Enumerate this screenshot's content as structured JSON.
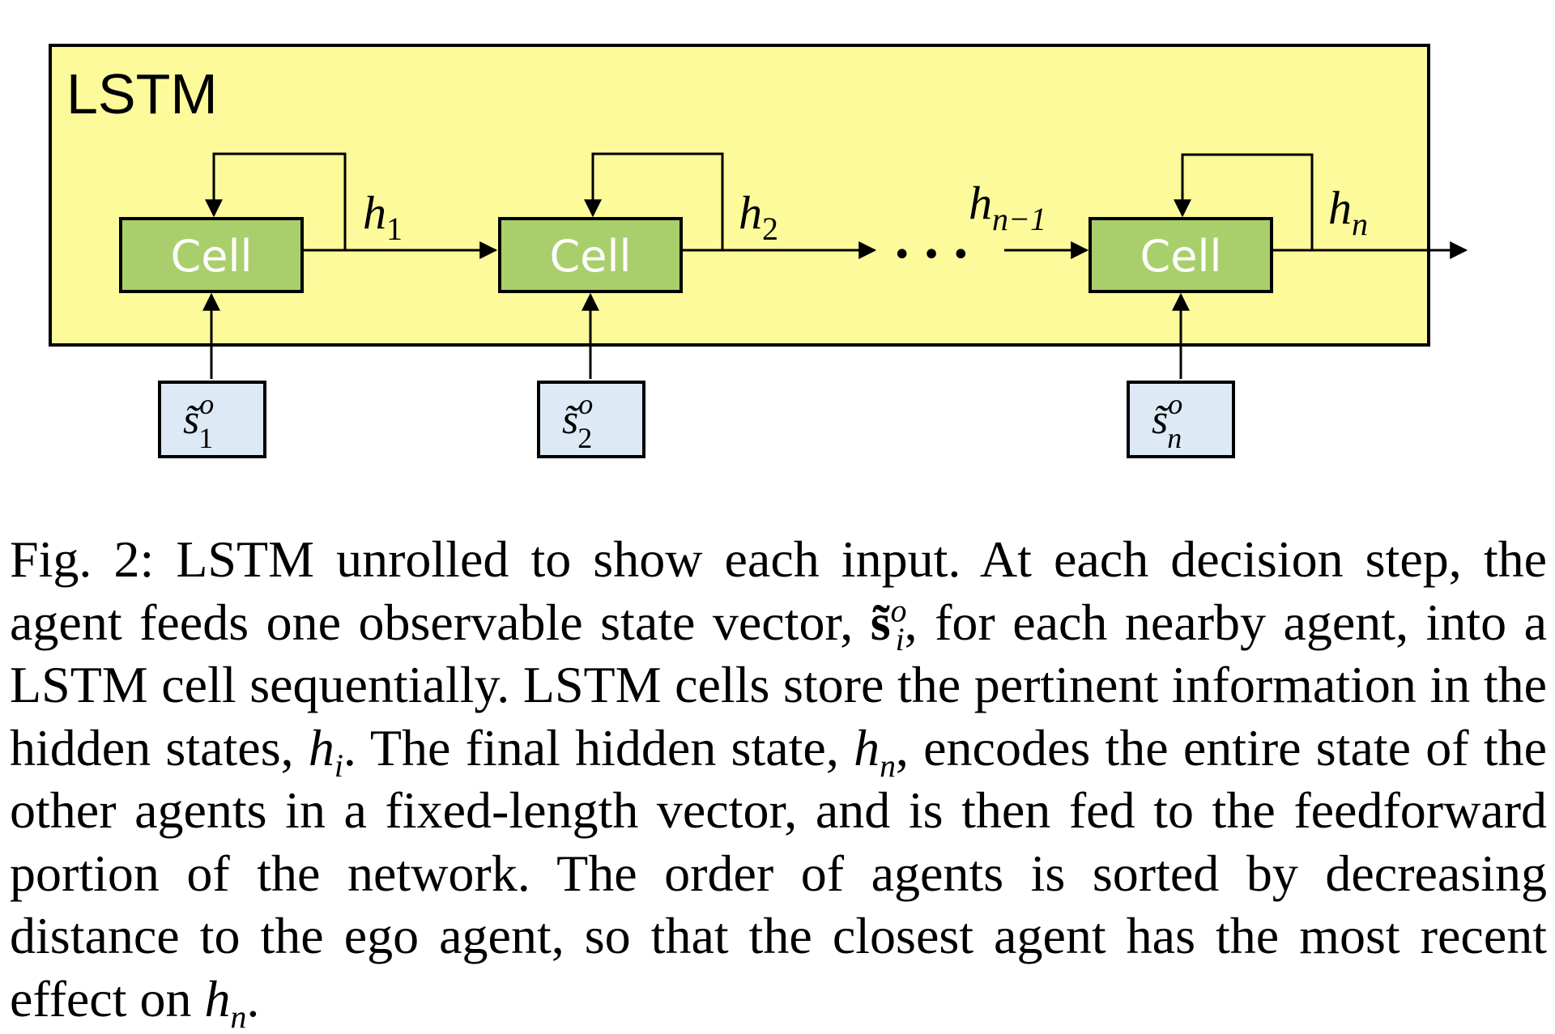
{
  "diagram": {
    "container_label": "LSTM",
    "colors": {
      "container_fill": "#fdfa9b",
      "cell_fill": "#a9cf6c",
      "input_fill": "#dde9f5",
      "stroke": "#000000",
      "cell_text": "#ffffff"
    },
    "cells": [
      {
        "label": "Cell",
        "input_base": "s̃",
        "input_sup": "o",
        "input_sub": "1",
        "hidden_base": "h",
        "hidden_sub": "1"
      },
      {
        "label": "Cell",
        "input_base": "s̃",
        "input_sup": "o",
        "input_sub": "2",
        "hidden_base": "h",
        "hidden_sub": "2"
      },
      {
        "label": "Cell",
        "input_base": "s̃",
        "input_sup": "o",
        "input_sub": "n",
        "hidden_base": "h",
        "hidden_sub": "n"
      }
    ],
    "prev_hidden": {
      "base": "h",
      "sub": "n−1"
    },
    "ellipsis": "• • •"
  },
  "caption": {
    "prefix": "Fig. 2: LSTM unrolled to show each input. At each decision step, the agent feeds one observable state vector, ",
    "symbol_state": {
      "base": "s̃",
      "sup": "o",
      "sub": "i"
    },
    "part2": ", for each nearby agent, into a LSTM cell sequentially. LSTM cells store the pertinent information in the hidden states, ",
    "symbol_hi": {
      "base": "h",
      "sub": "i"
    },
    "part3": ". The final hidden state, ",
    "symbol_hn1": {
      "base": "h",
      "sub": "n"
    },
    "part4": ", encodes the entire state of the other agents in a fixed-length vector, and is then fed to the feedforward portion of the network. The order of agents is sorted by decreasing distance to the ego agent, so that the closest agent has the most recent effect on ",
    "symbol_hn2": {
      "base": "h",
      "sub": "n"
    },
    "suffix": "."
  }
}
